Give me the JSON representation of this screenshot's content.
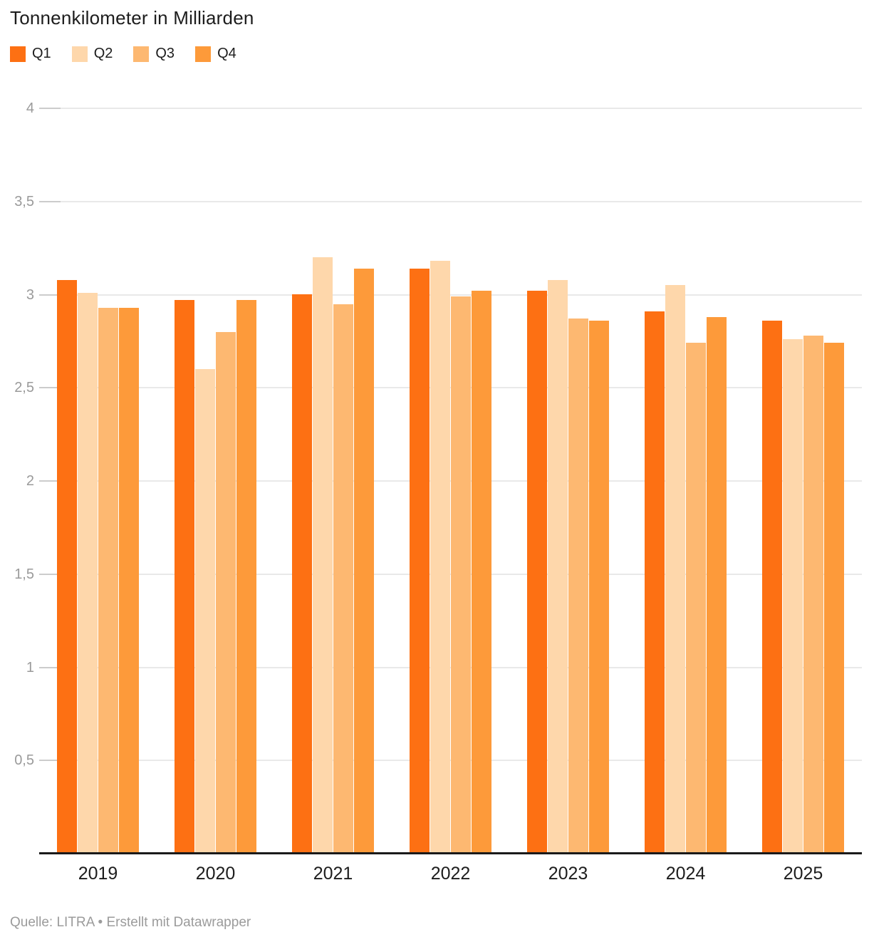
{
  "header": {
    "title": "Tonnenkilometer in Milliarden"
  },
  "footer": {
    "source_text": "Quelle: LITRA • Erstellt mit Datawrapper"
  },
  "colors": {
    "q1": "#fd7013",
    "q2": "#fed7ab",
    "q3": "#fdb871",
    "q4": "#fd9a3a",
    "gridline": "#e9e9e9",
    "axis_line": "#1a1a1a",
    "axis_text": "#9a9a9a"
  },
  "chart_data": {
    "type": "bar",
    "title": "Tonnenkilometer in Milliarden",
    "xlabel": "",
    "ylabel": "",
    "categories": [
      "2019",
      "2020",
      "2021",
      "2022",
      "2023",
      "2024",
      "2025"
    ],
    "series": [
      {
        "name": "Q1",
        "color": "#fd7013",
        "values": [
          3.08,
          2.97,
          3.0,
          3.14,
          3.02,
          2.91,
          2.86
        ]
      },
      {
        "name": "Q2",
        "color": "#fed7ab",
        "values": [
          3.01,
          2.6,
          3.2,
          3.18,
          3.08,
          3.05,
          2.76
        ]
      },
      {
        "name": "Q3",
        "color": "#fdb871",
        "values": [
          2.93,
          2.8,
          2.95,
          2.99,
          2.87,
          2.74,
          2.78
        ]
      },
      {
        "name": "Q4",
        "color": "#fd9a3a",
        "values": [
          2.93,
          2.97,
          3.14,
          3.02,
          2.86,
          2.88,
          2.74
        ]
      }
    ],
    "ylim": [
      0,
      4
    ],
    "ytick_step": 0.5,
    "yticks": [
      {
        "value": 0.5,
        "label": "0,5"
      },
      {
        "value": 1,
        "label": "1"
      },
      {
        "value": 1.5,
        "label": "1,5"
      },
      {
        "value": 2,
        "label": "2"
      },
      {
        "value": 2.5,
        "label": "2,5"
      },
      {
        "value": 3,
        "label": "3"
      },
      {
        "value": 3.5,
        "label": "3,5"
      },
      {
        "value": 4,
        "label": "4"
      }
    ],
    "grid": true,
    "legend_position": "top-left"
  }
}
